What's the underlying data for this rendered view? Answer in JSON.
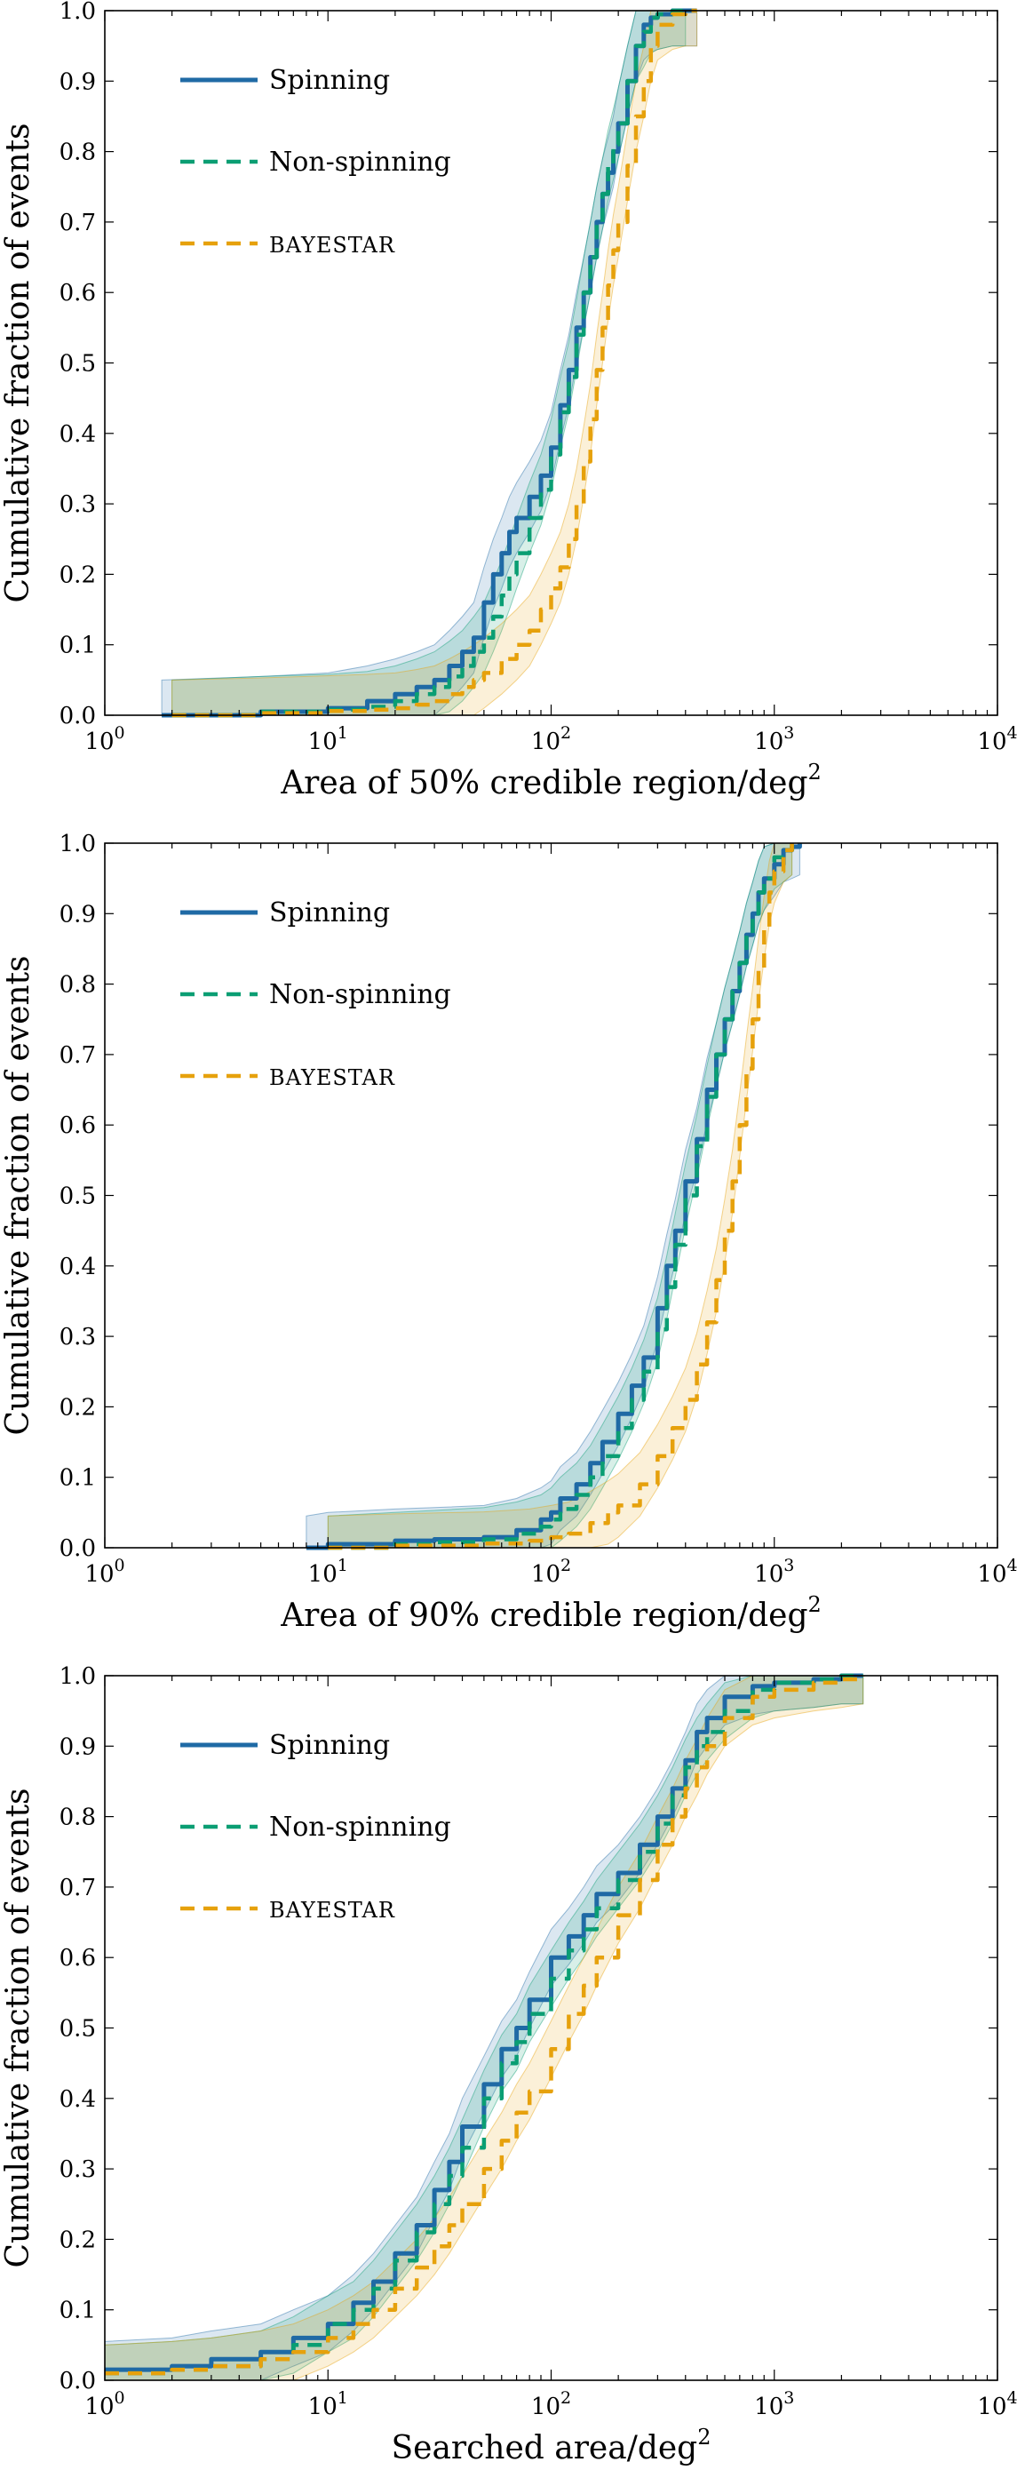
{
  "colors": {
    "spinning": "#1f6aa5",
    "nonspinning": "#0a9e73",
    "bayestar": "#e6a10c"
  },
  "panels": [
    {
      "xlabel": "Area of 50% credible region/deg",
      "xlabel_sup": "2",
      "ylabel": "Cumulative fraction of events",
      "legend": [
        {
          "name": "Spinning",
          "style": "solid",
          "color_key": "spinning"
        },
        {
          "name": "Non-spinning",
          "style": "dashed",
          "color_key": "nonspinning"
        },
        {
          "name": "BAYESTAR",
          "style": "dashed",
          "color_key": "bayestar"
        }
      ],
      "x_ticks": [
        {
          "base": "10",
          "exp": "0"
        },
        {
          "base": "10",
          "exp": "1"
        },
        {
          "base": "10",
          "exp": "2"
        },
        {
          "base": "10",
          "exp": "3"
        },
        {
          "base": "10",
          "exp": "4"
        }
      ],
      "y_ticks": [
        "0.0",
        "0.1",
        "0.2",
        "0.3",
        "0.4",
        "0.5",
        "0.6",
        "0.7",
        "0.8",
        "0.9",
        "1.0"
      ]
    },
    {
      "xlabel": "Area of 90% credible region/deg",
      "xlabel_sup": "2",
      "ylabel": "Cumulative fraction of events",
      "legend": [
        {
          "name": "Spinning",
          "style": "solid",
          "color_key": "spinning"
        },
        {
          "name": "Non-spinning",
          "style": "dashed",
          "color_key": "nonspinning"
        },
        {
          "name": "BAYESTAR",
          "style": "dashed",
          "color_key": "bayestar"
        }
      ],
      "x_ticks": [
        {
          "base": "10",
          "exp": "0"
        },
        {
          "base": "10",
          "exp": "1"
        },
        {
          "base": "10",
          "exp": "2"
        },
        {
          "base": "10",
          "exp": "3"
        },
        {
          "base": "10",
          "exp": "4"
        }
      ],
      "y_ticks": [
        "0.0",
        "0.1",
        "0.2",
        "0.3",
        "0.4",
        "0.5",
        "0.6",
        "0.7",
        "0.8",
        "0.9",
        "1.0"
      ]
    },
    {
      "xlabel": "Searched area/deg",
      "xlabel_sup": "2",
      "ylabel": "Cumulative fraction of events",
      "legend": [
        {
          "name": "Spinning",
          "style": "solid",
          "color_key": "spinning"
        },
        {
          "name": "Non-spinning",
          "style": "dashed",
          "color_key": "nonspinning"
        },
        {
          "name": "BAYESTAR",
          "style": "dashed",
          "color_key": "bayestar"
        }
      ],
      "x_ticks": [
        {
          "base": "10",
          "exp": "0"
        },
        {
          "base": "10",
          "exp": "1"
        },
        {
          "base": "10",
          "exp": "2"
        },
        {
          "base": "10",
          "exp": "3"
        },
        {
          "base": "10",
          "exp": "4"
        }
      ],
      "y_ticks": [
        "0.0",
        "0.1",
        "0.2",
        "0.3",
        "0.4",
        "0.5",
        "0.6",
        "0.7",
        "0.8",
        "0.9",
        "1.0"
      ]
    }
  ],
  "chart_data": [
    {
      "type": "line",
      "xscale": "log",
      "xlim": [
        1,
        10000
      ],
      "ylim": [
        0,
        1
      ],
      "xlabel": "Area of 50% credible region/deg2",
      "ylabel": "Cumulative fraction of events",
      "legend_position": "top-left",
      "bands": true,
      "series": [
        {
          "name": "Spinning",
          "color_key": "spinning",
          "style": "solid",
          "x": [
            1.8,
            5,
            10,
            15,
            20,
            25,
            30,
            35,
            40,
            45,
            50,
            55,
            60,
            65,
            70,
            80,
            90,
            100,
            110,
            120,
            130,
            140,
            150,
            160,
            170,
            180,
            190,
            200,
            220,
            240,
            260,
            280,
            300,
            350,
            400,
            450
          ],
          "y": [
            0.0,
            0.005,
            0.01,
            0.02,
            0.03,
            0.04,
            0.05,
            0.07,
            0.09,
            0.11,
            0.16,
            0.2,
            0.23,
            0.26,
            0.28,
            0.31,
            0.34,
            0.38,
            0.44,
            0.49,
            0.55,
            0.6,
            0.65,
            0.7,
            0.74,
            0.77,
            0.8,
            0.84,
            0.9,
            0.95,
            0.98,
            0.99,
            0.995,
            1.0,
            1.0,
            1.0
          ]
        },
        {
          "name": "Non-spinning",
          "color_key": "nonspinning",
          "style": "dashed",
          "x": [
            2,
            5,
            10,
            15,
            20,
            25,
            30,
            35,
            40,
            45,
            50,
            55,
            60,
            65,
            70,
            80,
            90,
            100,
            110,
            120,
            130,
            140,
            150,
            160,
            170,
            180,
            190,
            200,
            220,
            240,
            260,
            280,
            300,
            350,
            400
          ],
          "y": [
            0.0,
            0.005,
            0.008,
            0.012,
            0.02,
            0.03,
            0.04,
            0.055,
            0.07,
            0.09,
            0.11,
            0.14,
            0.17,
            0.2,
            0.23,
            0.28,
            0.32,
            0.37,
            0.43,
            0.48,
            0.54,
            0.6,
            0.65,
            0.7,
            0.74,
            0.78,
            0.81,
            0.84,
            0.9,
            0.95,
            0.97,
            0.99,
            0.995,
            1.0,
            1.0
          ]
        },
        {
          "name": "BAYESTAR",
          "color_key": "bayestar",
          "style": "dashed",
          "x": [
            2,
            5,
            10,
            15,
            20,
            25,
            30,
            35,
            40,
            45,
            50,
            60,
            70,
            80,
            90,
            100,
            110,
            120,
            130,
            140,
            150,
            160,
            170,
            180,
            190,
            200,
            220,
            240,
            260,
            280,
            300,
            350,
            400,
            450
          ],
          "y": [
            0.0,
            0.003,
            0.006,
            0.008,
            0.01,
            0.015,
            0.02,
            0.03,
            0.04,
            0.05,
            0.06,
            0.08,
            0.1,
            0.12,
            0.15,
            0.18,
            0.21,
            0.25,
            0.3,
            0.36,
            0.42,
            0.49,
            0.55,
            0.61,
            0.66,
            0.7,
            0.78,
            0.85,
            0.9,
            0.95,
            0.98,
            0.995,
            1.0,
            1.0
          ]
        }
      ]
    },
    {
      "type": "line",
      "xscale": "log",
      "xlim": [
        1,
        10000
      ],
      "ylim": [
        0,
        1
      ],
      "xlabel": "Area of 90% credible region/deg2",
      "ylabel": "Cumulative fraction of events",
      "legend_position": "top-left",
      "bands": true,
      "series": [
        {
          "name": "Spinning",
          "color_key": "spinning",
          "style": "solid",
          "x": [
            8,
            10,
            20,
            30,
            50,
            70,
            90,
            100,
            110,
            130,
            150,
            170,
            200,
            230,
            260,
            300,
            330,
            360,
            400,
            450,
            500,
            550,
            600,
            650,
            700,
            750,
            800,
            850,
            900,
            1000,
            1100,
            1200,
            1300
          ],
          "y": [
            0.0,
            0.005,
            0.01,
            0.012,
            0.015,
            0.025,
            0.04,
            0.05,
            0.07,
            0.09,
            0.12,
            0.15,
            0.19,
            0.23,
            0.27,
            0.34,
            0.4,
            0.45,
            0.52,
            0.58,
            0.65,
            0.7,
            0.75,
            0.79,
            0.83,
            0.87,
            0.9,
            0.93,
            0.95,
            0.97,
            0.99,
            0.995,
            1.0
          ]
        },
        {
          "name": "Non-spinning",
          "color_key": "nonspinning",
          "style": "dashed",
          "x": [
            10,
            20,
            30,
            50,
            70,
            90,
            100,
            110,
            130,
            150,
            170,
            200,
            230,
            260,
            300,
            330,
            360,
            400,
            450,
            500,
            550,
            600,
            650,
            700,
            750,
            800,
            850,
            900,
            1000,
            1100,
            1200
          ],
          "y": [
            0.0,
            0.005,
            0.008,
            0.012,
            0.02,
            0.03,
            0.04,
            0.055,
            0.075,
            0.1,
            0.13,
            0.17,
            0.21,
            0.25,
            0.31,
            0.37,
            0.43,
            0.5,
            0.57,
            0.64,
            0.7,
            0.75,
            0.79,
            0.83,
            0.87,
            0.9,
            0.93,
            0.95,
            0.98,
            0.99,
            1.0
          ]
        },
        {
          "name": "BAYESTAR",
          "color_key": "bayestar",
          "style": "dashed",
          "x": [
            10,
            20,
            50,
            80,
            100,
            120,
            150,
            180,
            200,
            250,
            300,
            350,
            400,
            450,
            500,
            550,
            600,
            650,
            700,
            750,
            800,
            850,
            900,
            950,
            1000,
            1100,
            1200
          ],
          "y": [
            0.0,
            0.003,
            0.006,
            0.01,
            0.015,
            0.02,
            0.035,
            0.05,
            0.06,
            0.09,
            0.13,
            0.17,
            0.21,
            0.26,
            0.32,
            0.38,
            0.45,
            0.52,
            0.6,
            0.68,
            0.75,
            0.82,
            0.88,
            0.93,
            0.96,
            0.99,
            1.0
          ]
        }
      ]
    },
    {
      "type": "line",
      "xscale": "log",
      "xlim": [
        1,
        10000
      ],
      "ylim": [
        0,
        1
      ],
      "xlabel": "Searched area/deg2",
      "ylabel": "Cumulative fraction of events",
      "legend_position": "top-left",
      "bands": true,
      "series": [
        {
          "name": "Spinning",
          "color_key": "spinning",
          "style": "solid",
          "x": [
            1,
            2,
            3,
            5,
            7,
            10,
            13,
            16,
            20,
            25,
            30,
            35,
            40,
            50,
            60,
            70,
            80,
            100,
            120,
            140,
            160,
            200,
            250,
            300,
            350,
            400,
            450,
            500,
            600,
            800,
            1000,
            1500,
            2000,
            2500
          ],
          "y": [
            0.015,
            0.02,
            0.03,
            0.04,
            0.06,
            0.08,
            0.11,
            0.14,
            0.18,
            0.22,
            0.27,
            0.31,
            0.36,
            0.42,
            0.47,
            0.5,
            0.54,
            0.6,
            0.63,
            0.66,
            0.69,
            0.72,
            0.76,
            0.8,
            0.84,
            0.88,
            0.92,
            0.94,
            0.97,
            0.985,
            0.99,
            0.995,
            1.0,
            1.0
          ]
        },
        {
          "name": "Non-spinning",
          "color_key": "nonspinning",
          "style": "dashed",
          "x": [
            1,
            2,
            3,
            5,
            7,
            10,
            13,
            16,
            20,
            25,
            30,
            35,
            40,
            50,
            60,
            70,
            80,
            100,
            120,
            140,
            160,
            200,
            250,
            300,
            350,
            400,
            450,
            500,
            600,
            800,
            1000,
            1500,
            2000,
            2500
          ],
          "y": [
            0.01,
            0.015,
            0.02,
            0.03,
            0.05,
            0.08,
            0.1,
            0.13,
            0.17,
            0.21,
            0.25,
            0.29,
            0.33,
            0.4,
            0.45,
            0.48,
            0.52,
            0.57,
            0.61,
            0.64,
            0.67,
            0.71,
            0.75,
            0.79,
            0.83,
            0.87,
            0.9,
            0.92,
            0.95,
            0.98,
            0.99,
            0.995,
            1.0,
            1.0
          ]
        },
        {
          "name": "BAYESTAR",
          "color_key": "bayestar",
          "style": "dashed",
          "x": [
            1,
            2,
            3,
            5,
            7,
            10,
            13,
            16,
            20,
            25,
            30,
            35,
            40,
            50,
            60,
            70,
            80,
            100,
            120,
            140,
            160,
            200,
            250,
            300,
            350,
            400,
            450,
            500,
            600,
            800,
            1000,
            1500,
            2000,
            2500
          ],
          "y": [
            0.01,
            0.015,
            0.02,
            0.03,
            0.04,
            0.06,
            0.08,
            0.1,
            0.13,
            0.16,
            0.19,
            0.22,
            0.25,
            0.3,
            0.34,
            0.38,
            0.41,
            0.47,
            0.52,
            0.56,
            0.6,
            0.66,
            0.71,
            0.76,
            0.8,
            0.84,
            0.87,
            0.9,
            0.94,
            0.97,
            0.98,
            0.99,
            0.995,
            1.0
          ]
        }
      ]
    }
  ]
}
